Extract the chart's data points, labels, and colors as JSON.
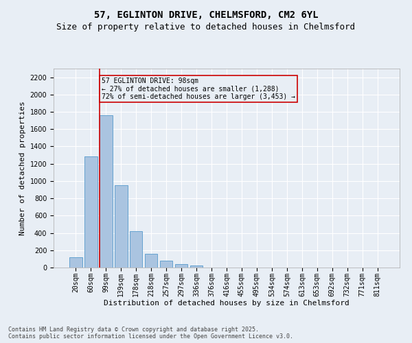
{
  "title": "57, EGLINTON DRIVE, CHELMSFORD, CM2 6YL",
  "subtitle": "Size of property relative to detached houses in Chelmsford",
  "xlabel": "Distribution of detached houses by size in Chelmsford",
  "ylabel": "Number of detached properties",
  "categories": [
    "20sqm",
    "60sqm",
    "99sqm",
    "139sqm",
    "178sqm",
    "218sqm",
    "257sqm",
    "297sqm",
    "336sqm",
    "376sqm",
    "416sqm",
    "455sqm",
    "495sqm",
    "534sqm",
    "574sqm",
    "613sqm",
    "653sqm",
    "692sqm",
    "732sqm",
    "771sqm",
    "811sqm"
  ],
  "values": [
    120,
    1288,
    1762,
    955,
    420,
    155,
    78,
    38,
    22,
    0,
    0,
    0,
    0,
    0,
    0,
    0,
    0,
    0,
    0,
    0,
    0
  ],
  "bar_color": "#aac4e0",
  "bar_edge_color": "#5599cc",
  "highlight_index": 2,
  "highlight_line_color": "#cc0000",
  "annotation_text": "57 EGLINTON DRIVE: 98sqm\n← 27% of detached houses are smaller (1,288)\n72% of semi-detached houses are larger (3,453) →",
  "annotation_box_color": "#cc0000",
  "annotation_text_color": "#000000",
  "ylim": [
    0,
    2300
  ],
  "yticks": [
    0,
    200,
    400,
    600,
    800,
    1000,
    1200,
    1400,
    1600,
    1800,
    2000,
    2200
  ],
  "bg_color": "#e8eef5",
  "grid_color": "#ffffff",
  "footer_line1": "Contains HM Land Registry data © Crown copyright and database right 2025.",
  "footer_line2": "Contains public sector information licensed under the Open Government Licence v3.0.",
  "title_fontsize": 10,
  "subtitle_fontsize": 9,
  "xlabel_fontsize": 8,
  "ylabel_fontsize": 8,
  "tick_fontsize": 7,
  "footer_fontsize": 6,
  "annotation_fontsize": 7
}
